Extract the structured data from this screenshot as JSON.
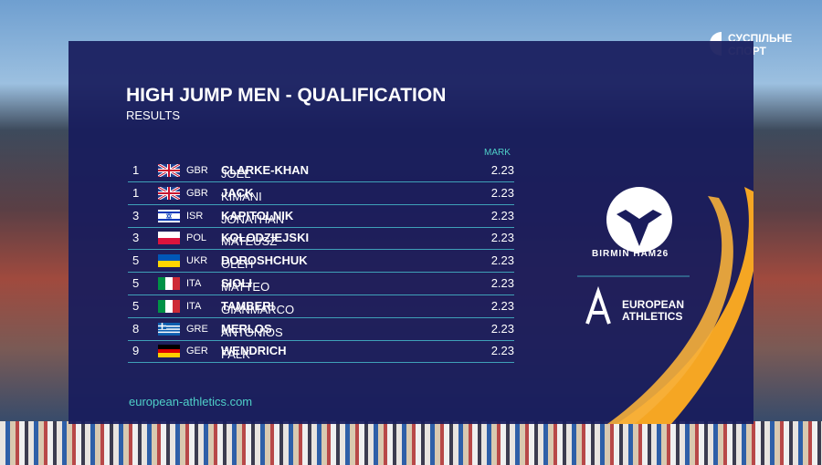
{
  "broadcaster": {
    "line1": "СУСПІЛЬНЕ",
    "line2": "СПОРТ"
  },
  "header": {
    "title": "HIGH JUMP MEN - QUALIFICATION",
    "subtitle": "RESULTS"
  },
  "table": {
    "column_header": "MARK",
    "rows": [
      [
        "1",
        "GBR",
        "JOEL",
        "CLARKE-KHAN",
        "2.23"
      ],
      [
        "1",
        "GBR",
        "KIMANI",
        "JACK",
        "2.23"
      ],
      [
        "3",
        "ISR",
        "JONATHAN",
        "KAPITOLNIK",
        "2.23"
      ],
      [
        "3",
        "POL",
        "MATEUSZ",
        "KOLODZIEJSKI",
        "2.23"
      ],
      [
        "5",
        "UKR",
        "OLEH",
        "DOROSHCHUK",
        "2.23"
      ],
      [
        "5",
        "ITA",
        "MATTEO",
        "SIOLI",
        "2.23"
      ],
      [
        "5",
        "ITA",
        "GIANMARCO",
        "TAMBERI",
        "2.23"
      ],
      [
        "8",
        "GRE",
        "ANTONIOS",
        "MERLOS",
        "2.23"
      ],
      [
        "9",
        "GER",
        "FALK",
        "WENDRICH",
        "2.23"
      ]
    ]
  },
  "footer": {
    "website": "european-athletics.com"
  },
  "logos": {
    "event_part1": "BIRMIN",
    "event_part2": "HAM26",
    "org_line1": "EUROPEAN",
    "org_line2": "ATHLETICS"
  }
}
